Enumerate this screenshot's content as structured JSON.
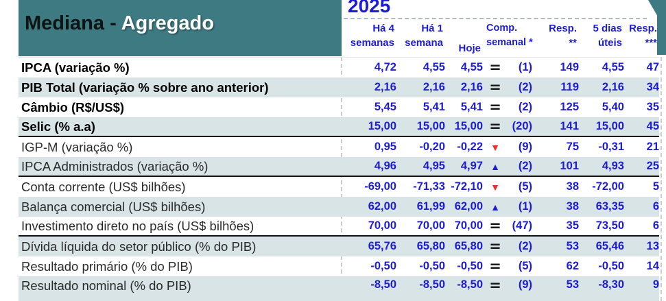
{
  "header": {
    "title_dark": "Mediana - ",
    "title_light": "Agregado",
    "year": "2025"
  },
  "columns": [
    {
      "line1": "Há 4",
      "line2": "semanas"
    },
    {
      "line1": "Há 1",
      "line2": "semana"
    },
    {
      "line1": "Hoje",
      "line2": ""
    },
    {
      "line1": "Comp.",
      "line2": "semanal *"
    },
    {
      "line1": "Resp.",
      "line2": "**"
    },
    {
      "line1": "5 dias",
      "line2": "úteis"
    },
    {
      "line1": "Resp.",
      "line2": "***"
    }
  ],
  "icons": {
    "equal": "=",
    "up": "▲",
    "down": "▼"
  },
  "colors": {
    "teal": "#3e7a81",
    "stripe": "#d9e4e7",
    "value_blue": "#1c1cd6",
    "trend_down_red": "#e63322",
    "separator_black": "#111111"
  },
  "rows": [
    {
      "label": "IPCA (variação %)",
      "bold": true,
      "ha4": "4,72",
      "ha1": "4,55",
      "hoje": "4,55",
      "trend": "equal",
      "comp": "(1)",
      "resp": "149",
      "dias5": "4,55",
      "resp3": "47",
      "sep": false
    },
    {
      "label": "PIB Total (variação % sobre ano anterior)",
      "bold": true,
      "ha4": "2,16",
      "ha1": "2,16",
      "hoje": "2,16",
      "trend": "equal",
      "comp": "(2)",
      "resp": "119",
      "dias5": "2,16",
      "resp3": "34",
      "sep": false
    },
    {
      "label": "Câmbio (R$/US$)",
      "bold": true,
      "ha4": "5,45",
      "ha1": "5,41",
      "hoje": "5,41",
      "trend": "equal",
      "comp": "(2)",
      "resp": "125",
      "dias5": "5,40",
      "resp3": "35",
      "sep": false
    },
    {
      "label": "Selic (% a.a)",
      "bold": true,
      "ha4": "15,00",
      "ha1": "15,00",
      "hoje": "15,00",
      "trend": "equal",
      "comp": "(20)",
      "resp": "141",
      "dias5": "15,00",
      "resp3": "45",
      "sep": true
    },
    {
      "label": "IGP-M (variação %)",
      "bold": false,
      "ha4": "0,95",
      "ha1": "-0,20",
      "hoje": "-0,22",
      "trend": "down",
      "comp": "(9)",
      "resp": "75",
      "dias5": "-0,31",
      "resp3": "21",
      "sep": false
    },
    {
      "label": "IPCA Administrados (variação %)",
      "bold": false,
      "ha4": "4,96",
      "ha1": "4,95",
      "hoje": "4,97",
      "trend": "up",
      "comp": "(2)",
      "resp": "101",
      "dias5": "4,93",
      "resp3": "25",
      "sep": true
    },
    {
      "label": "Conta corrente (US$ bilhões)",
      "bold": false,
      "ha4": "-69,00",
      "ha1": "-71,33",
      "hoje": "-72,10",
      "trend": "down",
      "comp": "(5)",
      "resp": "38",
      "dias5": "-72,00",
      "resp3": "5",
      "sep": false
    },
    {
      "label": "Balança comercial (US$ bilhões)",
      "bold": false,
      "ha4": "62,00",
      "ha1": "61,99",
      "hoje": "62,00",
      "trend": "up",
      "comp": "(1)",
      "resp": "38",
      "dias5": "63,35",
      "resp3": "6",
      "sep": false
    },
    {
      "label": "Investimento direto no país (US$ bilhões)",
      "bold": false,
      "ha4": "70,00",
      "ha1": "70,00",
      "hoje": "70,00",
      "trend": "equal",
      "comp": "(47)",
      "resp": "35",
      "dias5": "73,50",
      "resp3": "6",
      "sep": true
    },
    {
      "label": "Dívida líquida do setor público (% do PIB)",
      "bold": false,
      "ha4": "65,76",
      "ha1": "65,80",
      "hoje": "65,80",
      "trend": "equal",
      "comp": "(2)",
      "resp": "53",
      "dias5": "65,46",
      "resp3": "13",
      "sep": false
    },
    {
      "label": "Resultado primário (% do PIB)",
      "bold": false,
      "ha4": "-0,50",
      "ha1": "-0,50",
      "hoje": "-0,50",
      "trend": "equal",
      "comp": "(5)",
      "resp": "62",
      "dias5": "-0,50",
      "resp3": "14",
      "sep": false
    },
    {
      "label": "Resultado nominal (% do PIB)",
      "bold": false,
      "ha4": "-8,50",
      "ha1": "-8,50",
      "hoje": "-8,50",
      "trend": "equal",
      "comp": "(9)",
      "resp": "53",
      "dias5": "-8,30",
      "resp3": "9",
      "sep": false
    }
  ]
}
